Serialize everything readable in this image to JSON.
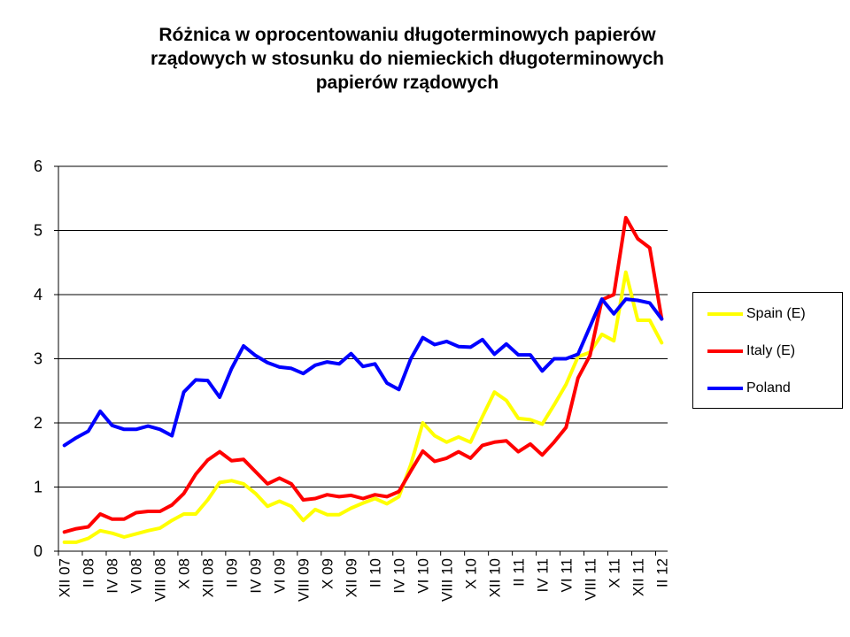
{
  "chart_data": {
    "type": "line",
    "title_lines": [
      "Różnica w oprocentowaniu długoterminowych papierów",
      "rządowych w stosunku do niemieckich długoterminowych",
      "papierów rządowych"
    ],
    "ylim": [
      0,
      6
    ],
    "yticks": [
      "0",
      "1",
      "2",
      "3",
      "4",
      "5",
      "6"
    ],
    "xtick_labels": [
      "XII 07",
      "II 08",
      "IV 08",
      "VI 08",
      "VIII 08",
      "X 08",
      "XII 08",
      "II 09",
      "IV 09",
      "VI 09",
      "VIII 09",
      "X 09",
      "XII 09",
      "II 10",
      "IV 10",
      "VI 10",
      "VIII 10",
      "X 10",
      "XII 10",
      "II 11",
      "IV 11",
      "VI 11",
      "VIII 11",
      "X 11",
      "XII 11",
      "II 12"
    ],
    "grid": true,
    "legend_position": "right",
    "series": [
      {
        "name": "Spain (E)",
        "color": "#ffff00",
        "values": [
          0.14,
          0.14,
          0.2,
          0.32,
          0.28,
          0.22,
          0.27,
          0.32,
          0.36,
          0.48,
          0.58,
          0.58,
          0.8,
          1.07,
          1.1,
          1.05,
          0.9,
          0.7,
          0.78,
          0.7,
          0.48,
          0.65,
          0.57,
          0.57,
          0.67,
          0.75,
          0.82,
          0.74,
          0.85,
          1.35,
          2.0,
          1.8,
          1.7,
          1.78,
          1.7,
          2.1,
          2.48,
          2.35,
          2.07,
          2.05,
          1.98,
          2.28,
          2.6,
          3.03,
          3.1,
          3.38,
          3.28,
          4.35,
          3.6,
          3.6,
          3.25
        ]
      },
      {
        "name": "Italy (E)",
        "color": "#ff0000",
        "values": [
          0.3,
          0.35,
          0.38,
          0.58,
          0.5,
          0.5,
          0.6,
          0.62,
          0.62,
          0.72,
          0.9,
          1.2,
          1.42,
          1.55,
          1.41,
          1.43,
          1.24,
          1.05,
          1.14,
          1.05,
          0.8,
          0.82,
          0.88,
          0.85,
          0.87,
          0.82,
          0.88,
          0.85,
          0.93,
          1.25,
          1.56,
          1.4,
          1.45,
          1.55,
          1.45,
          1.65,
          1.7,
          1.72,
          1.55,
          1.67,
          1.5,
          1.7,
          1.93,
          2.7,
          3.05,
          3.92,
          4.0,
          5.2,
          4.87,
          4.73,
          3.62
        ]
      },
      {
        "name": "Poland",
        "color": "#0000ff",
        "values": [
          1.65,
          1.77,
          1.87,
          2.18,
          1.96,
          1.9,
          1.9,
          1.95,
          1.9,
          1.8,
          2.48,
          2.67,
          2.66,
          2.4,
          2.85,
          3.2,
          3.05,
          2.94,
          2.87,
          2.85,
          2.77,
          2.9,
          2.95,
          2.92,
          3.08,
          2.88,
          2.92,
          2.62,
          2.52,
          3.0,
          3.33,
          3.22,
          3.27,
          3.19,
          3.18,
          3.3,
          3.07,
          3.23,
          3.06,
          3.06,
          2.81,
          3.0,
          3.0,
          3.07,
          3.5,
          3.93,
          3.7,
          3.93,
          3.91,
          3.87,
          3.62
        ]
      }
    ]
  }
}
